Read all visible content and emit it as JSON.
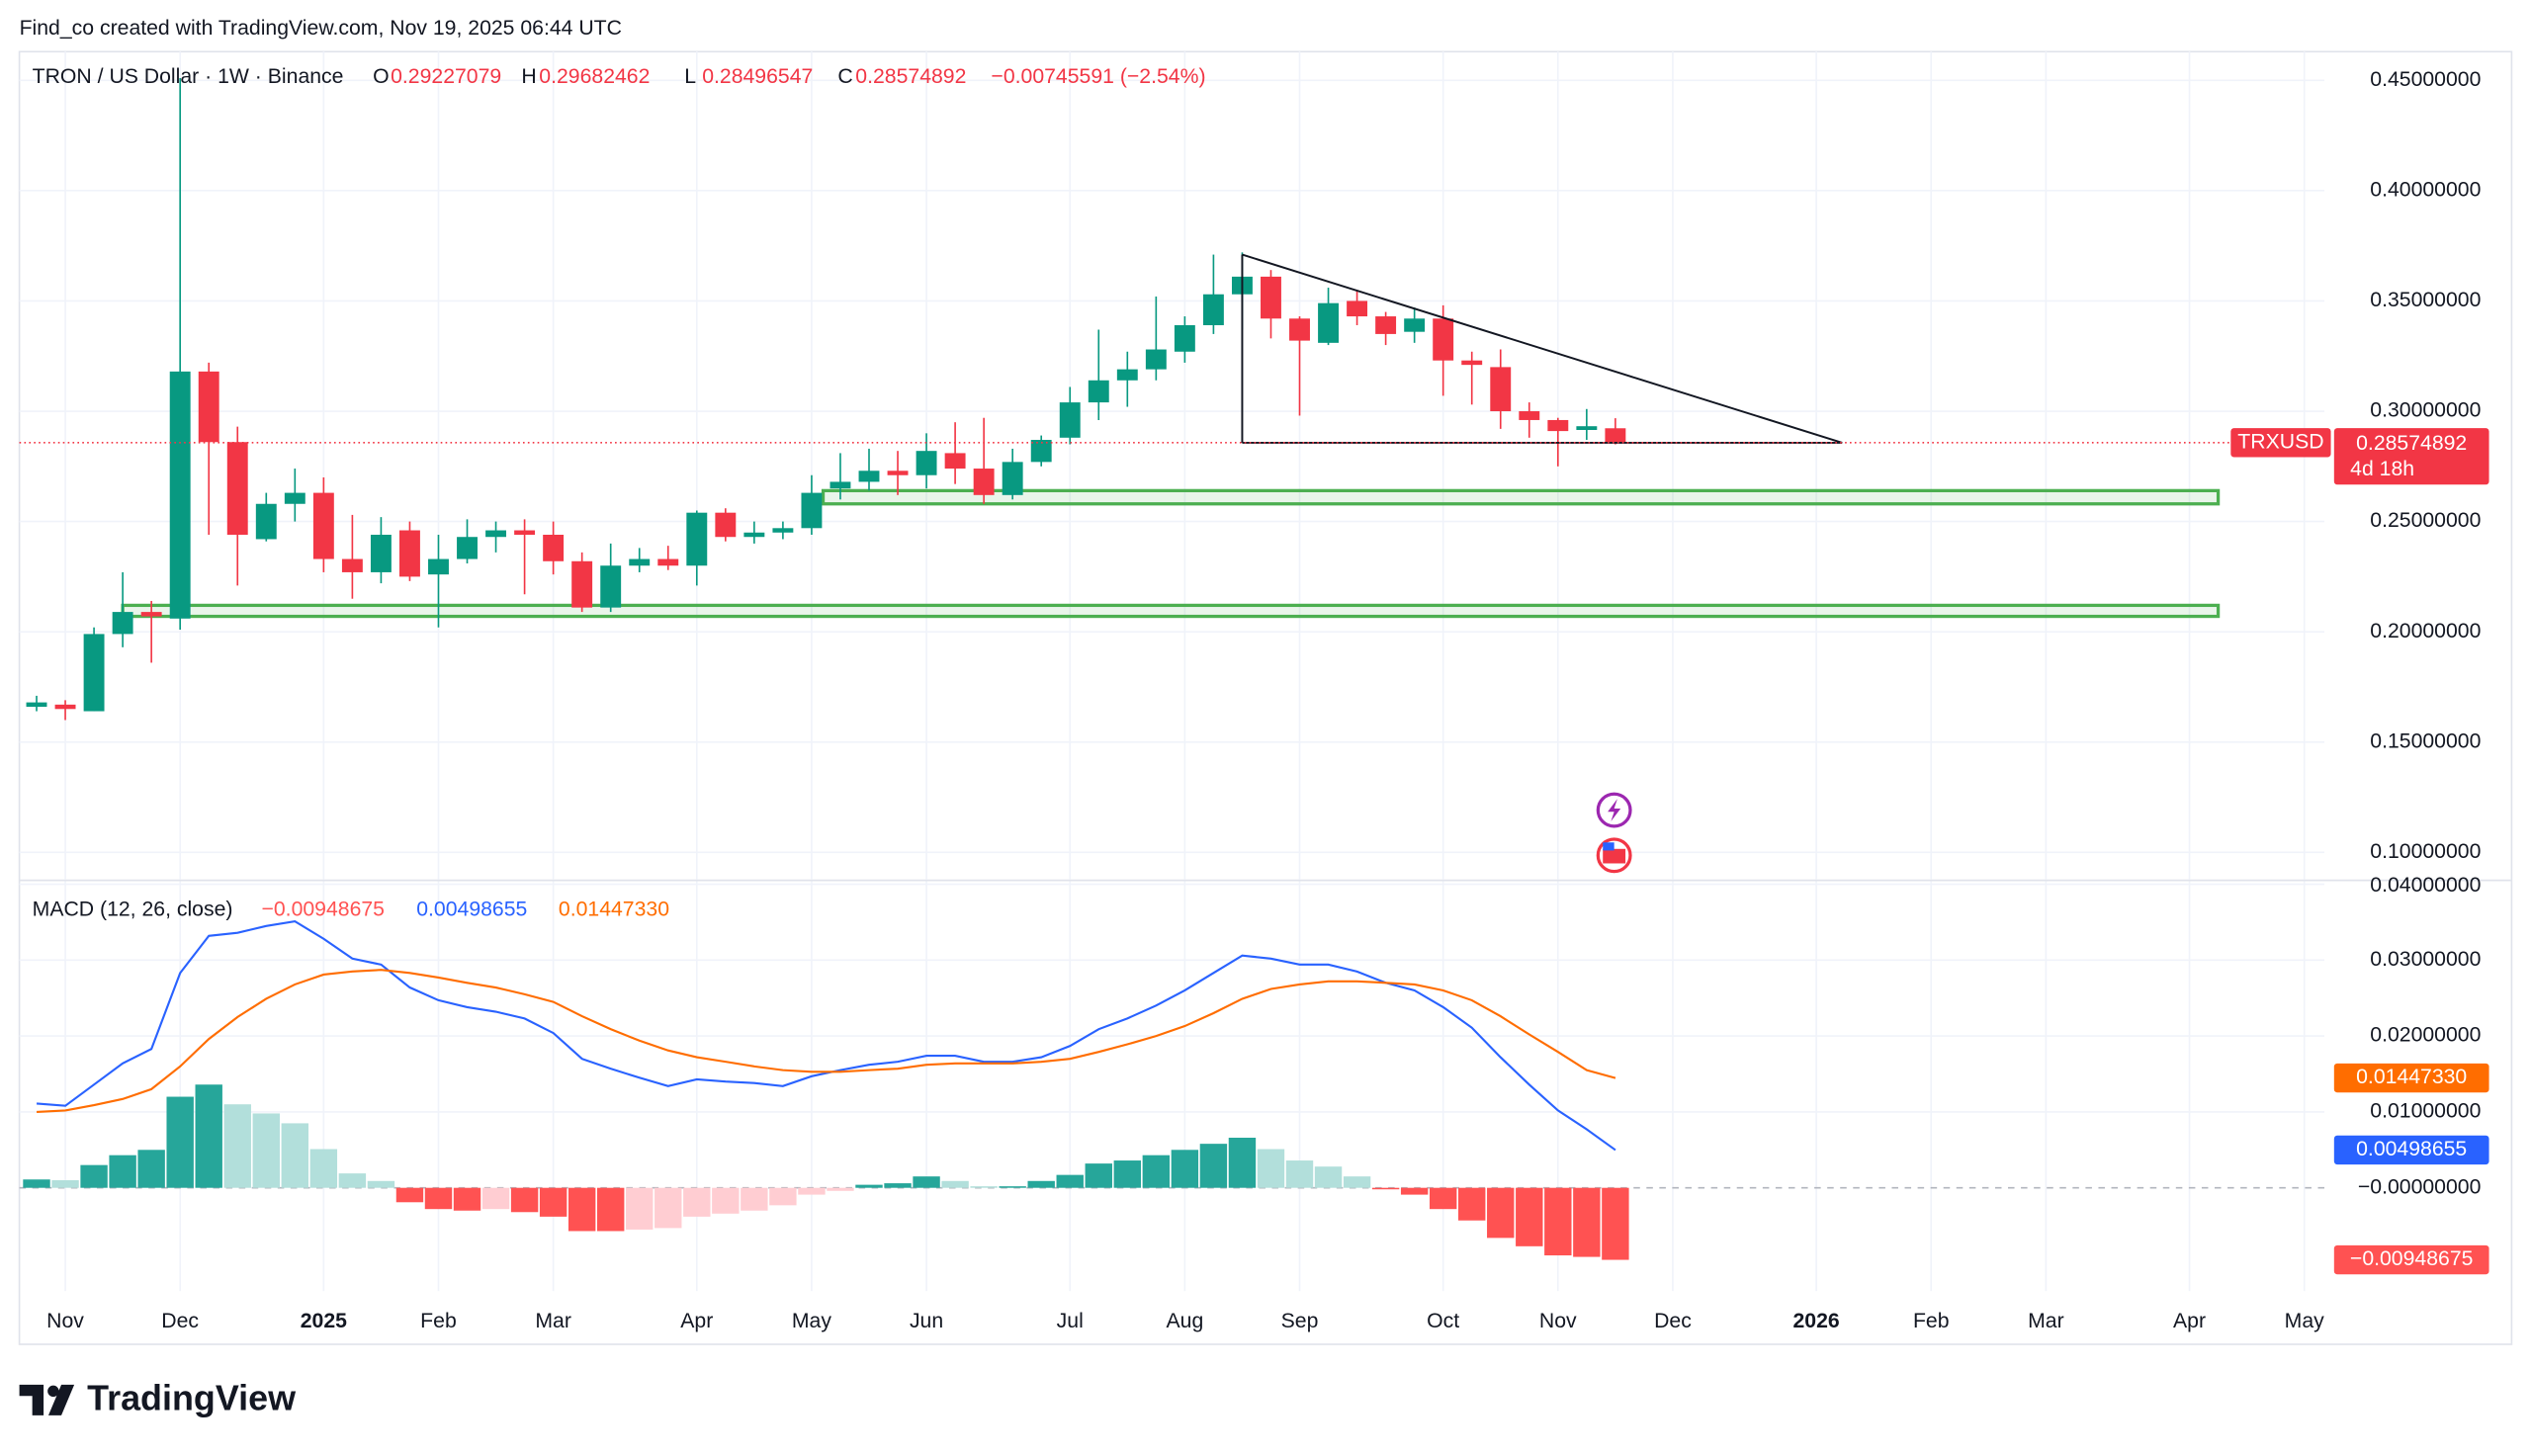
{
  "header": "Find_co created with TradingView.com, Nov 19, 2025 06:44 UTC",
  "brand": "TradingView",
  "chart_data": [
    {
      "type": "candlestick",
      "title": "TRON / US Dollar · 1W · Binance",
      "ohlc_labels": [
        "O",
        "H",
        "L",
        "C"
      ],
      "change": "−0.00745591 (−2.54%)",
      "symbol": "TRXUSD",
      "countdown": "4d 18h",
      "up_color": "#089981",
      "down_color": "#f23645",
      "open": [
        0.166,
        0.167,
        0.164,
        0.199,
        0.209,
        0.206,
        0.318,
        0.286,
        0.242,
        0.258,
        0.263,
        0.233,
        0.227,
        0.246,
        0.226,
        0.233,
        0.243,
        0.246,
        0.244,
        0.232,
        0.211,
        0.23,
        0.233,
        0.23,
        0.254,
        0.243,
        0.245,
        0.247,
        0.265,
        0.268,
        0.273,
        0.271,
        0.281,
        0.274,
        0.262,
        0.277,
        0.288,
        0.304,
        0.314,
        0.319,
        0.327,
        0.339,
        0.353,
        0.361,
        0.342,
        0.331,
        0.35,
        0.343,
        0.336,
        0.342,
        0.323,
        0.32,
        0.3,
        0.296,
        0.2915,
        0.29227079
      ],
      "high": [
        0.171,
        0.169,
        0.202,
        0.227,
        0.214,
        0.451,
        0.322,
        0.293,
        0.263,
        0.274,
        0.27,
        0.253,
        0.252,
        0.25,
        0.244,
        0.251,
        0.25,
        0.251,
        0.25,
        0.236,
        0.24,
        0.238,
        0.239,
        0.255,
        0.256,
        0.25,
        0.25,
        0.271,
        0.281,
        0.283,
        0.282,
        0.29,
        0.295,
        0.297,
        0.283,
        0.289,
        0.311,
        0.337,
        0.327,
        0.352,
        0.343,
        0.371,
        0.372,
        0.364,
        0.343,
        0.356,
        0.355,
        0.345,
        0.347,
        0.348,
        0.327,
        0.328,
        0.304,
        0.297,
        0.301,
        0.29682462
      ],
      "low": [
        0.164,
        0.16,
        0.164,
        0.193,
        0.186,
        0.201,
        0.244,
        0.221,
        0.241,
        0.25,
        0.227,
        0.215,
        0.222,
        0.223,
        0.202,
        0.231,
        0.236,
        0.217,
        0.226,
        0.209,
        0.209,
        0.227,
        0.228,
        0.221,
        0.241,
        0.24,
        0.242,
        0.244,
        0.26,
        0.264,
        0.262,
        0.265,
        0.267,
        0.258,
        0.26,
        0.275,
        0.285,
        0.296,
        0.302,
        0.314,
        0.322,
        0.335,
        0.337,
        0.333,
        0.298,
        0.33,
        0.339,
        0.33,
        0.331,
        0.307,
        0.303,
        0.292,
        0.288,
        0.275,
        0.287,
        0.28496547
      ],
      "close": [
        0.168,
        0.165,
        0.199,
        0.209,
        0.207,
        0.318,
        0.286,
        0.244,
        0.258,
        0.263,
        0.233,
        0.227,
        0.244,
        0.225,
        0.233,
        0.243,
        0.246,
        0.244,
        0.232,
        0.211,
        0.23,
        0.233,
        0.23,
        0.254,
        0.243,
        0.245,
        0.247,
        0.263,
        0.268,
        0.273,
        0.271,
        0.282,
        0.274,
        0.262,
        0.277,
        0.287,
        0.304,
        0.314,
        0.319,
        0.328,
        0.339,
        0.353,
        0.361,
        0.342,
        0.332,
        0.349,
        0.343,
        0.335,
        0.342,
        0.323,
        0.321,
        0.3,
        0.296,
        0.291,
        0.2932,
        0.28574892
      ],
      "xlim": [
        -0.6,
        79.7
      ],
      "xticks": [
        {
          "value": 1,
          "label": "Nov"
        },
        {
          "value": 5,
          "label": "Dec"
        },
        {
          "value": 10,
          "label": "2025"
        },
        {
          "value": 14,
          "label": "Feb"
        },
        {
          "value": 18,
          "label": "Mar"
        },
        {
          "value": 23,
          "label": "Apr"
        },
        {
          "value": 27,
          "label": "May"
        },
        {
          "value": 31,
          "label": "Jun"
        },
        {
          "value": 36,
          "label": "Jul"
        },
        {
          "value": 40,
          "label": "Aug"
        },
        {
          "value": 44,
          "label": "Sep"
        },
        {
          "value": 49,
          "label": "Oct"
        },
        {
          "value": 53,
          "label": "Nov"
        },
        {
          "value": 57,
          "label": "Dec"
        },
        {
          "value": 62,
          "label": "2026"
        },
        {
          "value": 66,
          "label": "Feb"
        },
        {
          "value": 70,
          "label": "Mar"
        },
        {
          "value": 75,
          "label": "Apr"
        },
        {
          "value": 79,
          "label": "May"
        }
      ],
      "ylim": [
        0.0877,
        0.463
      ],
      "yticks": [
        {
          "value": 0.45,
          "label": "0.45000000"
        },
        {
          "value": 0.4,
          "label": "0.40000000"
        },
        {
          "value": 0.35,
          "label": "0.35000000"
        },
        {
          "value": 0.3,
          "label": "0.30000000"
        },
        {
          "value": 0.25,
          "label": "0.25000000"
        },
        {
          "value": 0.2,
          "label": "0.20000000"
        },
        {
          "value": 0.15,
          "label": "0.15000000"
        },
        {
          "value": 0.1,
          "label": "0.10000000"
        }
      ],
      "grid": true,
      "zones": [
        {
          "x": [
            27.4,
            76
          ],
          "y": [
            0.258,
            0.264
          ],
          "color": "#4caf50"
        },
        {
          "x": [
            3,
            76
          ],
          "y": [
            0.207,
            0.212
          ],
          "color": "#4caf50"
        }
      ],
      "trendlines": [
        {
          "x": [
            42,
            62.9
          ],
          "y": [
            0.371,
            0.2857
          ]
        },
        {
          "x": [
            42,
            42
          ],
          "y": [
            0.371,
            0.2857
          ]
        },
        {
          "x": [
            42,
            62.9
          ],
          "y": [
            0.2857,
            0.2857
          ]
        }
      ]
    },
    {
      "type": "macd",
      "title": "MACD (12, 26, close)",
      "ylim": [
        -0.0136,
        0.0404
      ],
      "yticks": [
        {
          "value": 0.04,
          "label": "0.04000000"
        },
        {
          "value": 0.03,
          "label": "0.03000000"
        },
        {
          "value": 0.02,
          "label": "0.02000000"
        },
        {
          "value": 0.01,
          "label": "0.01000000"
        },
        {
          "value": 0,
          "label": "−0.00000000"
        }
      ],
      "series": [
        {
          "kind": "histogram",
          "colors": [
            "#26a69a",
            "#b2dfdb",
            "#ffcdd2",
            "#ff5252"
          ],
          "last_label": "−0.00948675",
          "values": [
            0.0011,
            0.001,
            0.003,
            0.0043,
            0.005,
            0.012,
            0.0136,
            0.011,
            0.0098,
            0.0085,
            0.0051,
            0.0019,
            0.0009,
            -0.0019,
            -0.0028,
            -0.003,
            -0.0028,
            -0.0032,
            -0.0038,
            -0.0057,
            -0.0057,
            -0.0055,
            -0.0053,
            -0.0038,
            -0.0034,
            -0.003,
            -0.0023,
            -0.0009,
            -0.0004,
            0.0004,
            0.0006,
            0.0015,
            0.0009,
            0.0002,
            0.0002,
            0.0009,
            0.0017,
            0.0032,
            0.0036,
            0.0043,
            0.005,
            0.0058,
            0.0066,
            0.0051,
            0.0036,
            0.0028,
            0.0015,
            -0.0002,
            -0.0009,
            -0.0028,
            -0.0043,
            -0.0066,
            -0.0077,
            -0.0089,
            -0.0091,
            -0.00948675
          ]
        },
        {
          "kind": "line",
          "color": "#2962ff",
          "last_label": "0.00498655",
          "values": [
            0.0111,
            0.0108,
            0.0136,
            0.0164,
            0.0183,
            0.0283,
            0.0332,
            0.0336,
            0.0345,
            0.0351,
            0.0328,
            0.0302,
            0.0294,
            0.0264,
            0.0247,
            0.0238,
            0.0232,
            0.0223,
            0.0204,
            0.017,
            0.0157,
            0.0145,
            0.0134,
            0.0143,
            0.014,
            0.0138,
            0.0134,
            0.0147,
            0.0155,
            0.0162,
            0.0166,
            0.0174,
            0.0174,
            0.0166,
            0.0166,
            0.0172,
            0.0187,
            0.0209,
            0.0223,
            0.024,
            0.026,
            0.0283,
            0.0306,
            0.0302,
            0.0294,
            0.0294,
            0.0285,
            0.027,
            0.026,
            0.0238,
            0.0211,
            0.0172,
            0.0136,
            0.0102,
            0.0077,
            0.00498655
          ]
        },
        {
          "kind": "line",
          "color": "#ff6d00",
          "last_label": "0.01447330",
          "values": [
            0.01,
            0.0102,
            0.0109,
            0.0117,
            0.013,
            0.016,
            0.0196,
            0.0225,
            0.0249,
            0.0268,
            0.0281,
            0.0285,
            0.0287,
            0.0283,
            0.0277,
            0.027,
            0.0264,
            0.0255,
            0.0245,
            0.0226,
            0.0209,
            0.0194,
            0.0181,
            0.0172,
            0.0166,
            0.016,
            0.0155,
            0.0153,
            0.0153,
            0.0155,
            0.0157,
            0.0162,
            0.0164,
            0.0164,
            0.0164,
            0.0166,
            0.017,
            0.0179,
            0.0189,
            0.02,
            0.0213,
            0.023,
            0.0249,
            0.0262,
            0.0268,
            0.0272,
            0.0272,
            0.027,
            0.0268,
            0.026,
            0.0247,
            0.0226,
            0.0202,
            0.0179,
            0.0155,
            0.0144733
          ]
        }
      ]
    }
  ]
}
